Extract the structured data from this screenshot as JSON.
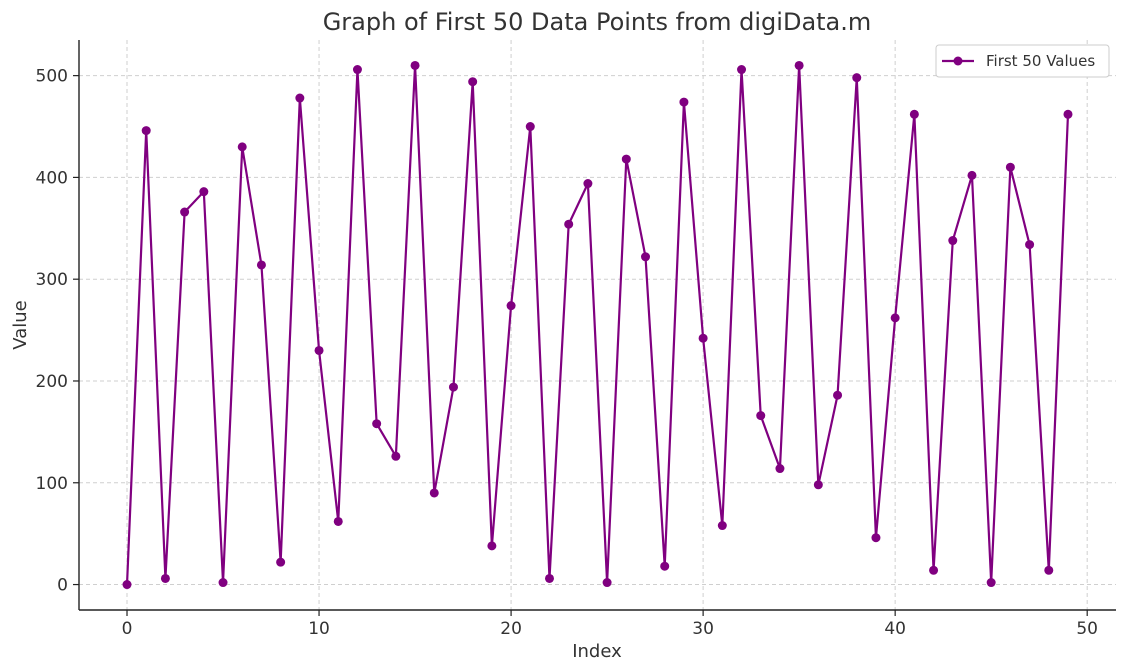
{
  "chart_data": {
    "type": "line",
    "title": "Graph of First 50 Data Points from digiData.m",
    "xlabel": "Index",
    "ylabel": "Value",
    "xlim": [
      -2.5,
      51.5
    ],
    "ylim": [
      -25,
      535
    ],
    "xticks": [
      0,
      10,
      20,
      30,
      40,
      50
    ],
    "yticks": [
      0,
      100,
      200,
      300,
      400,
      500
    ],
    "grid": true,
    "legend_position": "top-right",
    "series": [
      {
        "name": "First 50 Values",
        "color": "#800080",
        "marker": "circle",
        "x": [
          0,
          1,
          2,
          3,
          4,
          5,
          6,
          7,
          8,
          9,
          10,
          11,
          12,
          13,
          14,
          15,
          16,
          17,
          18,
          19,
          20,
          21,
          22,
          23,
          24,
          25,
          26,
          27,
          28,
          29,
          30,
          31,
          32,
          33,
          34,
          35,
          36,
          37,
          38,
          39,
          40,
          41,
          42,
          43,
          44,
          45,
          46,
          47,
          48,
          49
        ],
        "values": [
          0,
          446,
          6,
          366,
          386,
          2,
          430,
          314,
          22,
          478,
          230,
          62,
          506,
          158,
          126,
          510,
          90,
          194,
          494,
          38,
          274,
          450,
          6,
          354,
          394,
          2,
          418,
          322,
          18,
          474,
          242,
          58,
          506,
          166,
          114,
          510,
          98,
          186,
          498,
          46,
          262,
          462,
          14,
          338,
          402,
          2,
          410,
          334,
          14,
          462
        ]
      }
    ]
  }
}
